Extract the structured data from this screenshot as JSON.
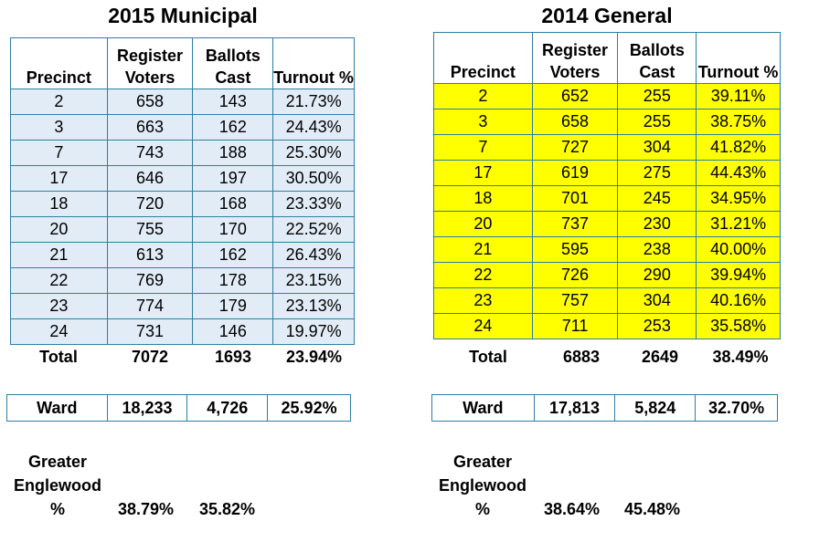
{
  "left": {
    "title": "2015 Municipal",
    "headers": [
      "Precinct",
      "Register Voters",
      "Ballots Cast",
      "Turnout %"
    ],
    "rows": [
      [
        "2",
        "658",
        "143",
        "21.73%"
      ],
      [
        "3",
        "663",
        "162",
        "24.43%"
      ],
      [
        "7",
        "743",
        "188",
        "25.30%"
      ],
      [
        "17",
        "646",
        "197",
        "30.50%"
      ],
      [
        "18",
        "720",
        "168",
        "23.33%"
      ],
      [
        "20",
        "755",
        "170",
        "22.52%"
      ],
      [
        "21",
        "613",
        "162",
        "26.43%"
      ],
      [
        "22",
        "769",
        "178",
        "23.15%"
      ],
      [
        "23",
        "774",
        "179",
        "23.13%"
      ],
      [
        "24",
        "731",
        "146",
        "19.97%"
      ]
    ],
    "total": {
      "label": "Total",
      "voters": "7072",
      "ballots": "1693",
      "turnout": "23.94%"
    },
    "ward": {
      "label": "Ward",
      "voters": "18,233",
      "ballots": "4,726",
      "turnout": "25.92%"
    },
    "greater": {
      "line1": "Greater",
      "line2": "Englewood",
      "line3": "%",
      "v1": "38.79%",
      "v2": "35.82%"
    }
  },
  "right": {
    "title": "2014 General",
    "headers": [
      "Precinct",
      "Register Voters",
      "Ballots Cast",
      "Turnout %"
    ],
    "rows": [
      [
        "2",
        "652",
        "255",
        "39.11%"
      ],
      [
        "3",
        "658",
        "255",
        "38.75%"
      ],
      [
        "7",
        "727",
        "304",
        "41.82%"
      ],
      [
        "17",
        "619",
        "275",
        "44.43%"
      ],
      [
        "18",
        "701",
        "245",
        "34.95%"
      ],
      [
        "20",
        "737",
        "230",
        "31.21%"
      ],
      [
        "21",
        "595",
        "238",
        "40.00%"
      ],
      [
        "22",
        "726",
        "290",
        "39.94%"
      ],
      [
        "23",
        "757",
        "304",
        "40.16%"
      ],
      [
        "24",
        "711",
        "253",
        "35.58%"
      ]
    ],
    "total": {
      "label": "Total",
      "voters": "6883",
      "ballots": "2649",
      "turnout": "38.49%"
    },
    "ward": {
      "label": "Ward",
      "voters": "17,813",
      "ballots": "5,824",
      "turnout": "32.70%"
    },
    "greater": {
      "line1": "Greater",
      "line2": "Englewood",
      "line3": "%",
      "v1": "38.64%",
      "v2": "45.48%"
    }
  }
}
